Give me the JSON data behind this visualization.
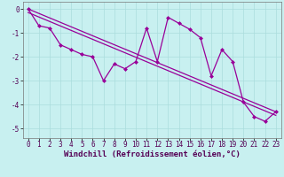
{
  "title": "",
  "xlabel": "Windchill (Refroidissement éolien,°C)",
  "ylabel": "",
  "bg_color": "#c8f0f0",
  "line_color": "#990099",
  "grid_color": "#aadddd",
  "xlim": [
    -0.5,
    23.5
  ],
  "ylim": [
    -5.4,
    0.3
  ],
  "xticks": [
    0,
    1,
    2,
    3,
    4,
    5,
    6,
    7,
    8,
    9,
    10,
    11,
    12,
    13,
    14,
    15,
    16,
    17,
    18,
    19,
    20,
    21,
    22,
    23
  ],
  "yticks": [
    0,
    -1,
    -2,
    -3,
    -4,
    -5
  ],
  "hours": [
    0,
    1,
    2,
    3,
    4,
    5,
    6,
    7,
    8,
    9,
    10,
    11,
    12,
    13,
    14,
    15,
    16,
    17,
    18,
    19,
    20,
    21,
    22,
    23
  ],
  "main_line": [
    0.0,
    -0.7,
    -0.8,
    -1.5,
    -1.7,
    -1.9,
    -2.0,
    -3.0,
    -2.3,
    -2.5,
    -2.2,
    -0.8,
    -2.2,
    -0.35,
    -0.6,
    -0.85,
    -1.2,
    -2.8,
    -1.7,
    -2.2,
    -3.9,
    -4.5,
    -4.7,
    -4.3
  ],
  "straight_line1": [
    [
      0.0,
      0.0
    ],
    [
      23.0,
      -4.3
    ]
  ],
  "straight_line2": [
    [
      0.0,
      -0.15
    ],
    [
      23.0,
      -4.45
    ]
  ],
  "marker": "D",
  "markersize": 2.5,
  "linewidth": 0.9,
  "xlabel_fontsize": 6.5,
  "tick_fontsize": 5.5
}
